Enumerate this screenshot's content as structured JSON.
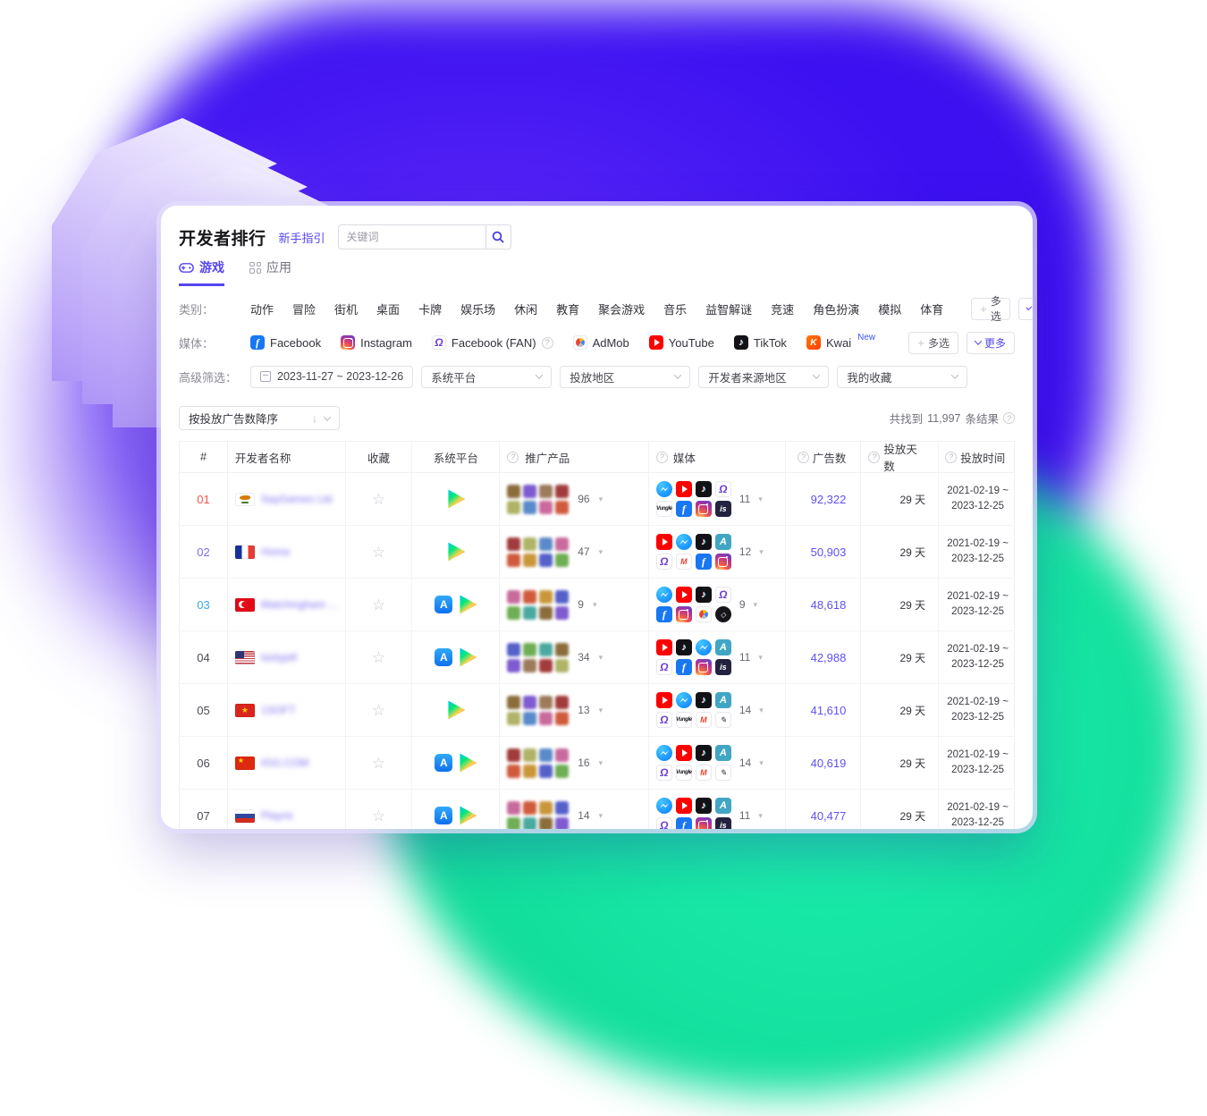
{
  "page": {
    "title": "开发者排行",
    "guide_link": "新手指引"
  },
  "search": {
    "placeholder": "关键词"
  },
  "tabs": [
    {
      "id": "games",
      "label": "游戏",
      "active": true
    },
    {
      "id": "apps",
      "label": "应用",
      "active": false
    }
  ],
  "filters": {
    "category": {
      "label": "类别：",
      "items": [
        "动作",
        "冒险",
        "街机",
        "桌面",
        "卡牌",
        "娱乐场",
        "休闲",
        "教育",
        "聚会游戏",
        "音乐",
        "益智解谜",
        "竞速",
        "角色扮演",
        "模拟",
        "体育"
      ]
    },
    "media": {
      "label": "媒体：",
      "items": [
        {
          "name": "facebook",
          "label": "Facebook"
        },
        {
          "name": "instagram",
          "label": "Instagram"
        },
        {
          "name": "facebook-fan",
          "label": "Facebook (FAN)",
          "help": true
        },
        {
          "name": "admob",
          "label": "AdMob"
        },
        {
          "name": "youtube",
          "label": "YouTube"
        },
        {
          "name": "tiktok",
          "label": "TikTok"
        },
        {
          "name": "kwai",
          "label": "Kwai",
          "badge": "New"
        }
      ]
    },
    "advanced": {
      "label": "高级筛选：",
      "date_range": "2023-11-27 ~ 2023-12-26",
      "selects": [
        "系统平台",
        "投放地区",
        "开发者来源地区",
        "我的收藏"
      ]
    },
    "multi_select_label": "多选",
    "more_label": "更多"
  },
  "sort": {
    "label": "按投放广告数降序"
  },
  "result": {
    "prefix": "共找到",
    "count": "11,997",
    "suffix": "条结果"
  },
  "table": {
    "columns": [
      {
        "key": "rank",
        "label": "#"
      },
      {
        "key": "dev",
        "label": "开发者名称"
      },
      {
        "key": "fav",
        "label": "收藏"
      },
      {
        "key": "plat",
        "label": "系统平台"
      },
      {
        "key": "prod",
        "label": "推广产品",
        "help": true
      },
      {
        "key": "media",
        "label": "媒体",
        "help": true
      },
      {
        "key": "ads",
        "label": "广告数",
        "help": true
      },
      {
        "key": "days",
        "label": "投放天数",
        "help": true
      },
      {
        "key": "time",
        "label": "投放时间",
        "help": true
      }
    ],
    "rows": [
      {
        "rank": "01",
        "flag": "cyprus",
        "name": "SayGames Ltd",
        "platforms": [
          "google-play"
        ],
        "products_count": "96",
        "media": [
          "messenger",
          "youtube",
          "tiktok",
          "facebook-fan",
          "vungle",
          "facebook",
          "instagram",
          "ironsource"
        ],
        "media_count": "11",
        "ads": "92,322",
        "days": "29 天",
        "time_start": "2021-02-19 ~",
        "time_end": "2023-12-25"
      },
      {
        "rank": "02",
        "flag": "france",
        "name": "Homa",
        "platforms": [
          "google-play"
        ],
        "products_count": "47",
        "media": [
          "youtube",
          "messenger",
          "tiktok",
          "applovin",
          "facebook-fan",
          "mintegral",
          "facebook",
          "instagram"
        ],
        "media_count": "12",
        "ads": "50,903",
        "days": "29 天",
        "time_start": "2021-02-19 ~",
        "time_end": "2023-12-25"
      },
      {
        "rank": "03",
        "flag": "turkey",
        "name": "Matchingham ...",
        "platforms": [
          "app-store",
          "google-play"
        ],
        "products_count": "9",
        "media": [
          "messenger",
          "youtube",
          "tiktok",
          "facebook-fan",
          "facebook",
          "instagram",
          "admob",
          "unity"
        ],
        "media_count": "9",
        "ads": "48,618",
        "days": "29 天",
        "time_start": "2021-02-19 ~",
        "time_end": "2023-12-25"
      },
      {
        "rank": "04",
        "flag": "usa",
        "name": "tastypill",
        "platforms": [
          "app-store",
          "google-play"
        ],
        "products_count": "34",
        "media": [
          "youtube",
          "tiktok",
          "messenger",
          "applovin",
          "facebook-fan",
          "facebook",
          "instagram",
          "ironsource"
        ],
        "media_count": "11",
        "ads": "42,988",
        "days": "29 天",
        "time_start": "2021-02-19 ~",
        "time_end": "2023-12-25"
      },
      {
        "rank": "05",
        "flag": "vietnam",
        "name": "1SOFT",
        "platforms": [
          "google-play"
        ],
        "products_count": "13",
        "media": [
          "youtube",
          "messenger",
          "tiktok",
          "applovin",
          "facebook-fan",
          "vungle",
          "mintegral",
          "moloco"
        ],
        "media_count": "14",
        "ads": "41,610",
        "days": "29 天",
        "time_start": "2021-02-19 ~",
        "time_end": "2023-12-25"
      },
      {
        "rank": "06",
        "flag": "china",
        "name": "IGG.COM",
        "platforms": [
          "app-store",
          "google-play"
        ],
        "products_count": "16",
        "media": [
          "messenger",
          "youtube",
          "tiktok",
          "applovin",
          "facebook-fan",
          "vungle",
          "mintegral",
          "moloco"
        ],
        "media_count": "14",
        "ads": "40,619",
        "days": "29 天",
        "time_start": "2021-02-19 ~",
        "time_end": "2023-12-25"
      },
      {
        "rank": "07",
        "flag": "russia",
        "name": "Playrix",
        "platforms": [
          "app-store",
          "google-play"
        ],
        "products_count": "14",
        "media": [
          "messenger",
          "youtube",
          "tiktok",
          "applovin",
          "facebook-fan",
          "facebook",
          "instagram",
          "ironsource"
        ],
        "media_count": "11",
        "ads": "40,477",
        "days": "29 天",
        "time_start": "2021-02-19 ~",
        "time_end": "2023-12-25"
      }
    ]
  },
  "colors": {
    "accent": "#5546F0",
    "ads_number": "#5F50EF",
    "rank_1": "#F2544B",
    "rank_2": "#7B6EF2",
    "rank_3": "#3DA8F5",
    "blob_blue": "#3B10F1",
    "blob_green": "#12DD9A"
  }
}
